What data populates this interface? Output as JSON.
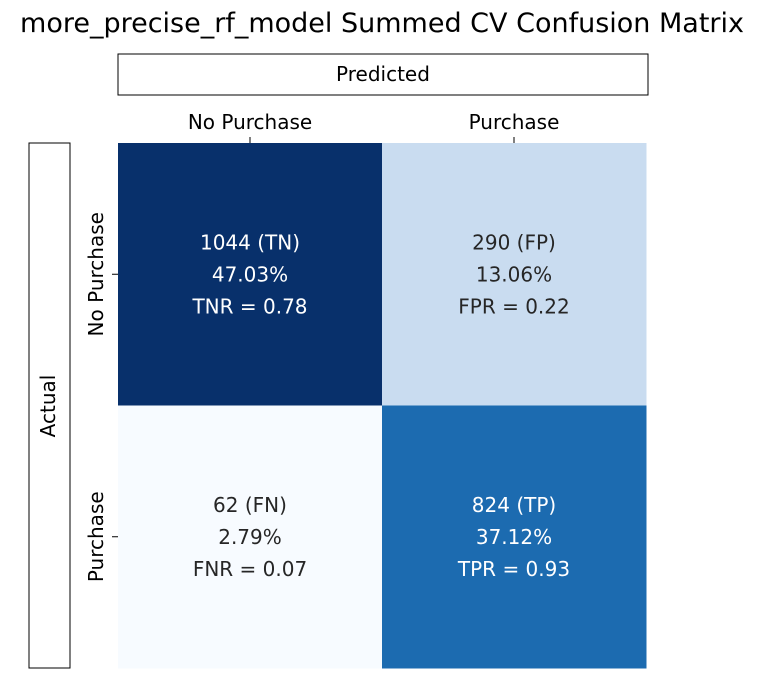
{
  "chart_data": {
    "type": "heatmap",
    "title": "more_precise_rf_model Summed CV Confusion Matrix",
    "xlabel": "Predicted",
    "ylabel": "Actual",
    "x_categories": [
      "No Purchase",
      "Purchase"
    ],
    "y_categories": [
      "No Purchase",
      "Purchase"
    ],
    "colormap": "Blues",
    "colorbar": false,
    "values": [
      [
        1044,
        290
      ],
      [
        62,
        824
      ]
    ],
    "cells": [
      [
        {
          "count": "1044",
          "tag": "(TN)",
          "percent": "47.03%",
          "rate": "TNR = 0.78",
          "fill": "#08306b",
          "text_color": "#ffffff"
        },
        {
          "count": "290",
          "tag": "(FP)",
          "percent": "13.06%",
          "rate": "FPR = 0.22",
          "fill": "#c9dcf0",
          "text_color": "#262626"
        }
      ],
      [
        {
          "count": "62",
          "tag": "(FN)",
          "percent": "2.79%",
          "rate": "FNR = 0.07",
          "fill": "#f7fbff",
          "text_color": "#262626"
        },
        {
          "count": "824",
          "tag": "(TP)",
          "percent": "37.12%",
          "rate": "TPR = 0.93",
          "fill": "#1c6bb0",
          "text_color": "#ffffff"
        }
      ]
    ]
  }
}
